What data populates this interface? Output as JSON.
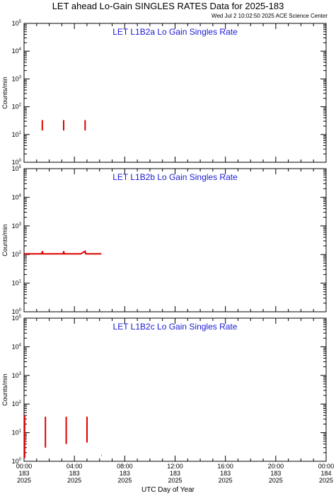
{
  "header": {
    "title": "LET ahead Lo-Gain SINGLES RATES Data for 2025-183",
    "timestamp": "Wed Jul  2 10:02:50 2025 ACE Science Center"
  },
  "chart_data": [
    {
      "type": "line",
      "title": "LET L1B2a Lo Gain Singles Rate",
      "ylabel": "Counts/min",
      "yscale": "log",
      "ylim": [
        1,
        100000
      ],
      "xlim": [
        0,
        24
      ],
      "color": "#e00000",
      "series": [
        {
          "values": [
            [
              1.45,
              14
            ],
            [
              1.45,
              33
            ]
          ]
        },
        {
          "values": [
            [
              3.15,
              14
            ],
            [
              3.15,
              33
            ]
          ]
        },
        {
          "values": [
            [
              4.85,
              14
            ],
            [
              4.85,
              33
            ]
          ]
        }
      ]
    },
    {
      "type": "line",
      "title": "LET L1B2b Lo Gain Singles Rate",
      "ylabel": "Counts/min",
      "yscale": "log",
      "ylim": [
        1,
        100000
      ],
      "xlim": [
        0,
        24
      ],
      "color": "#e00000",
      "series": [
        {
          "values": [
            [
              0.0,
              105
            ],
            [
              0.5,
              106
            ],
            [
              1.0,
              105
            ],
            [
              1.4,
              106
            ],
            [
              1.45,
              130
            ],
            [
              1.5,
              106
            ],
            [
              2.0,
              105
            ],
            [
              2.5,
              106
            ],
            [
              3.1,
              105
            ],
            [
              3.15,
              130
            ],
            [
              3.2,
              105
            ],
            [
              4.0,
              106
            ],
            [
              4.5,
              105
            ],
            [
              4.85,
              130
            ],
            [
              4.9,
              105
            ],
            [
              5.5,
              106
            ],
            [
              6.15,
              105
            ]
          ]
        }
      ]
    },
    {
      "type": "line",
      "title": "LET L1B2c Lo Gain Singles Rate",
      "ylabel": "Counts/min",
      "yscale": "log",
      "ylim": [
        1,
        100000
      ],
      "xlim": [
        0,
        24
      ],
      "color": "#e00000",
      "series": [
        {
          "values": [
            [
              0.05,
              1.3
            ],
            [
              0.05,
              40
            ]
          ]
        },
        {
          "values": [
            [
              1.7,
              3
            ],
            [
              1.7,
              36
            ]
          ]
        },
        {
          "values": [
            [
              3.35,
              4
            ],
            [
              3.35,
              36
            ]
          ]
        },
        {
          "values": [
            [
              5.0,
              4.5
            ],
            [
              5.0,
              36
            ]
          ]
        },
        {
          "values": [
            [
              6.15,
              1.6
            ],
            [
              6.18,
              1.6
            ]
          ]
        }
      ]
    }
  ],
  "xaxis": {
    "label": "UTC Day of Year",
    "ticks": [
      {
        "x": 0,
        "time": "00:00",
        "day": "183",
        "year": "2025"
      },
      {
        "x": 4,
        "time": "04:00",
        "day": "183",
        "year": "2025"
      },
      {
        "x": 8,
        "time": "08:00",
        "day": "183",
        "year": "2025"
      },
      {
        "x": 12,
        "time": "12:00",
        "day": "183",
        "year": "2025"
      },
      {
        "x": 16,
        "time": "16:00",
        "day": "183",
        "year": "2025"
      },
      {
        "x": 20,
        "time": "20:00",
        "day": "183",
        "year": "2025"
      },
      {
        "x": 24,
        "time": "00:00",
        "day": "184",
        "year": "2025"
      }
    ]
  },
  "yticks": [
    {
      "exp": 0,
      "base": "10",
      "sup": "0"
    },
    {
      "exp": 1,
      "base": "10",
      "sup": "1"
    },
    {
      "exp": 2,
      "base": "10",
      "sup": "2"
    },
    {
      "exp": 3,
      "base": "10",
      "sup": "3"
    },
    {
      "exp": 4,
      "base": "10",
      "sup": "4"
    },
    {
      "exp": 5,
      "base": "10",
      "sup": "5"
    }
  ]
}
